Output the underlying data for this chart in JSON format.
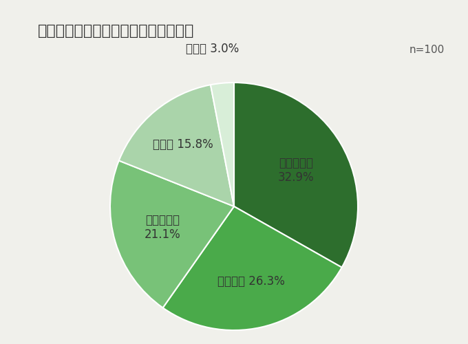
{
  "title": "配信結果を社内の誰と共有しますか？",
  "n_label": "n=100",
  "slices": [
    {
      "label_line1": "部内の共有",
      "label_line2": "32.9%",
      "value": 32.9,
      "color": "#2d6e2d"
    },
    {
      "label_line1": "社内全体 26.3%",
      "label_line2": "",
      "value": 26.3,
      "color": "#4aaa4a"
    },
    {
      "label_line1": "直属の上司",
      "label_line2": "21.1%",
      "value": 21.1,
      "color": "#78c278"
    },
    {
      "label_line1": "経営層 15.8%",
      "label_line2": "",
      "value": 15.8,
      "color": "#aad4aa"
    },
    {
      "label_line1": "その他 3.0%",
      "label_line2": "",
      "value": 3.0,
      "color": "#d8eed8"
    }
  ],
  "startangle": 90,
  "background_color": "#f0f0eb",
  "title_fontsize": 16,
  "label_fontsize": 12,
  "n_label_fontsize": 11
}
